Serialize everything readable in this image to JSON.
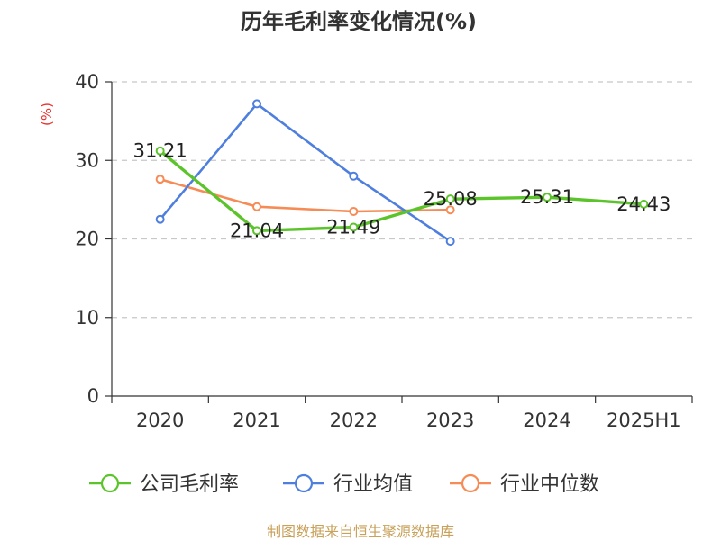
{
  "chart_data": {
    "type": "line",
    "title": "历年毛利率变化情况(%)",
    "ylabel": "(%)",
    "categories": [
      "2020",
      "2021",
      "2022",
      "2023",
      "2024",
      "2025H1"
    ],
    "ylim": [
      0,
      40
    ],
    "yticks": [
      "0",
      "10",
      "20",
      "30",
      "40"
    ],
    "grid": true,
    "legend_position": "bottom",
    "series": [
      {
        "name": "公司毛利率",
        "color": "#5cc42b",
        "values": [
          31.21,
          21.04,
          21.49,
          25.08,
          25.31,
          24.43
        ],
        "labels": [
          "31.21",
          "21.04",
          "21.49",
          "25.08",
          "25.31",
          "24.43"
        ]
      },
      {
        "name": "行业均值",
        "color": "#4f7fde",
        "values": [
          22.5,
          37.2,
          28.0,
          19.7,
          null,
          null
        ]
      },
      {
        "name": "行业中位数",
        "color": "#f68b55",
        "values": [
          27.6,
          24.1,
          23.5,
          23.7,
          null,
          null
        ]
      }
    ]
  },
  "source": "制图数据来自恒生聚源数据库"
}
